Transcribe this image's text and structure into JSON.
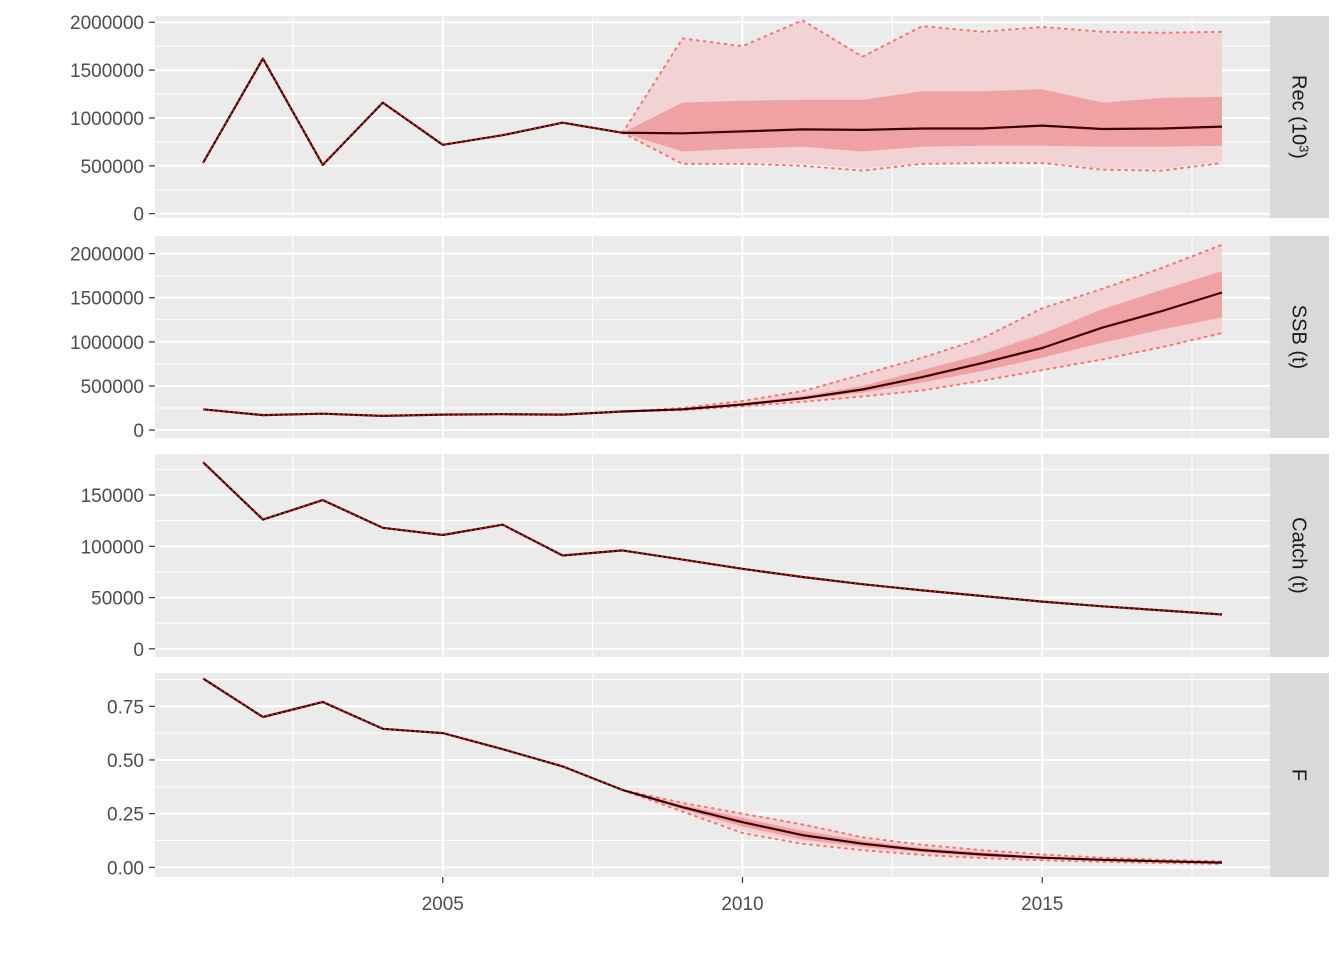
{
  "chart_data": {
    "type": "line",
    "layout": "faceted-vertical",
    "x_axis": {
      "ticks": [
        2005,
        2010,
        2015
      ],
      "tick_labels": [
        "2005",
        "2010",
        "2015"
      ],
      "range": [
        2000.2,
        2018.8
      ]
    },
    "colors": {
      "panel_bg": "#ebebeb",
      "grid": "#ffffff",
      "strip_bg": "#d9d9d9",
      "median": "#3d0000",
      "band_outer": "#f2d3d5",
      "band_inner": "#f0a1a4",
      "dotted": "#f8766d",
      "tick_text": "#4d4d4d",
      "strip_text": "#1a1a1a"
    },
    "facets": [
      {
        "id": "rec",
        "strip_label": "Rec (10",
        "strip_label_sup": "3",
        "strip_label_end": ")",
        "ylim": [
          -45000,
          2065000
        ],
        "y_ticks": [
          0,
          500000,
          1000000,
          1500000,
          2000000
        ],
        "y_tick_labels": [
          "0",
          "500000",
          "1000000",
          "1500000",
          "2000000"
        ],
        "years": [
          2001,
          2002,
          2003,
          2004,
          2005,
          2006,
          2007,
          2008,
          2009,
          2010,
          2011,
          2012,
          2013,
          2014,
          2015,
          2016,
          2017,
          2018
        ],
        "median": [
          530000,
          1620000,
          510000,
          1160000,
          720000,
          820000,
          950000,
          845000,
          840000,
          860000,
          880000,
          875000,
          890000,
          890000,
          920000,
          885000,
          890000,
          910000
        ],
        "band_years": [
          2008,
          2009,
          2010,
          2011,
          2012,
          2013,
          2014,
          2015,
          2016,
          2017,
          2018
        ],
        "outer_lower": [
          845000,
          530000,
          530000,
          520000,
          470000,
          530000,
          540000,
          540000,
          470000,
          470000,
          540000
        ],
        "outer_upper": [
          845000,
          1820000,
          1740000,
          2010000,
          1650000,
          1950000,
          1890000,
          1940000,
          1890000,
          1890000,
          1890000
        ],
        "inner_lower": [
          845000,
          650000,
          680000,
          700000,
          650000,
          700000,
          710000,
          710000,
          700000,
          700000,
          710000
        ],
        "inner_upper": [
          845000,
          1160000,
          1180000,
          1190000,
          1190000,
          1280000,
          1280000,
          1300000,
          1160000,
          1210000,
          1220000
        ],
        "dotted_lower": [
          845000,
          520000,
          520000,
          500000,
          450000,
          520000,
          530000,
          530000,
          460000,
          450000,
          530000
        ],
        "dotted_upper": [
          845000,
          1830000,
          1750000,
          2020000,
          1640000,
          1960000,
          1900000,
          1950000,
          1900000,
          1890000,
          1900000
        ]
      },
      {
        "id": "ssb",
        "strip_label": "SSB (t)",
        "ylim": [
          -90000,
          2200000
        ],
        "y_ticks": [
          0,
          500000,
          1000000,
          1500000,
          2000000
        ],
        "y_tick_labels": [
          "0",
          "500000",
          "1000000",
          "1500000",
          "2000000"
        ],
        "years": [
          2001,
          2002,
          2003,
          2004,
          2005,
          2006,
          2007,
          2008,
          2009,
          2010,
          2011,
          2012,
          2013,
          2014,
          2015,
          2016,
          2017,
          2018
        ],
        "median": [
          235000,
          170000,
          185000,
          160000,
          175000,
          180000,
          175000,
          210000,
          235000,
          290000,
          360000,
          460000,
          600000,
          760000,
          930000,
          1160000,
          1350000,
          1560000
        ],
        "band_years": [
          2008,
          2009,
          2010,
          2011,
          2012,
          2013,
          2014,
          2015,
          2016,
          2017,
          2018
        ],
        "outer_lower": [
          210000,
          225000,
          270000,
          320000,
          380000,
          450000,
          560000,
          680000,
          800000,
          940000,
          1090000
        ],
        "outer_upper": [
          210000,
          250000,
          330000,
          440000,
          630000,
          820000,
          1040000,
          1370000,
          1600000,
          1840000,
          2090000
        ],
        "inner_lower": [
          210000,
          230000,
          285000,
          345000,
          425000,
          540000,
          670000,
          820000,
          990000,
          1140000,
          1280000
        ],
        "inner_upper": [
          210000,
          240000,
          305000,
          385000,
          500000,
          680000,
          860000,
          1090000,
          1370000,
          1590000,
          1800000
        ],
        "dotted_lower": [
          210000,
          225000,
          270000,
          320000,
          380000,
          450000,
          560000,
          680000,
          800000,
          940000,
          1100000
        ],
        "dotted_upper": [
          210000,
          250000,
          330000,
          440000,
          630000,
          820000,
          1040000,
          1380000,
          1600000,
          1840000,
          2100000
        ]
      },
      {
        "id": "catch",
        "strip_label": "Catch (t)",
        "ylim": [
          -8000,
          190000
        ],
        "y_ticks": [
          0,
          50000,
          100000,
          150000
        ],
        "y_tick_labels": [
          "0",
          "50000",
          "100000",
          "150000"
        ],
        "years": [
          2001,
          2002,
          2003,
          2004,
          2005,
          2006,
          2007,
          2008,
          2009,
          2010,
          2011,
          2012,
          2013,
          2014,
          2015,
          2016,
          2017,
          2018
        ],
        "median": [
          182000,
          126000,
          145000,
          118000,
          111000,
          121000,
          91000,
          96000,
          87000,
          78000,
          70000,
          63000,
          57000,
          51500,
          46000,
          41500,
          37500,
          33500
        ],
        "band_years": [],
        "outer_lower": [],
        "outer_upper": [],
        "inner_lower": [],
        "inner_upper": [],
        "dotted_lower": [],
        "dotted_upper": []
      },
      {
        "id": "f",
        "strip_label": "F",
        "ylim": [
          -0.045,
          0.905
        ],
        "y_ticks": [
          0,
          0.25,
          0.5,
          0.75
        ],
        "y_tick_labels": [
          "0.00",
          "0.25",
          "0.50",
          "0.75"
        ],
        "years": [
          2001,
          2002,
          2003,
          2004,
          2005,
          2006,
          2007,
          2008,
          2009,
          2010,
          2011,
          2012,
          2013,
          2014,
          2015,
          2016,
          2017,
          2018
        ],
        "median": [
          0.88,
          0.7,
          0.77,
          0.645,
          0.625,
          0.55,
          0.47,
          0.36,
          0.28,
          0.21,
          0.15,
          0.11,
          0.08,
          0.06,
          0.045,
          0.035,
          0.028,
          0.022
        ],
        "band_years": [
          2008,
          2009,
          2010,
          2011,
          2012,
          2013,
          2014,
          2015,
          2016,
          2017,
          2018
        ],
        "outer_lower": [
          0.36,
          0.26,
          0.17,
          0.12,
          0.085,
          0.06,
          0.045,
          0.035,
          0.027,
          0.02,
          0.016
        ],
        "outer_upper": [
          0.36,
          0.3,
          0.25,
          0.2,
          0.14,
          0.1,
          0.08,
          0.06,
          0.045,
          0.035,
          0.028
        ],
        "inner_lower": [
          0.36,
          0.27,
          0.19,
          0.13,
          0.095,
          0.07,
          0.05,
          0.04,
          0.03,
          0.024,
          0.019
        ],
        "inner_upper": [
          0.36,
          0.29,
          0.23,
          0.17,
          0.125,
          0.09,
          0.07,
          0.05,
          0.04,
          0.032,
          0.025
        ],
        "dotted_lower": [
          0.36,
          0.26,
          0.16,
          0.11,
          0.08,
          0.058,
          0.043,
          0.033,
          0.026,
          0.02,
          0.016
        ],
        "dotted_upper": [
          0.36,
          0.3,
          0.25,
          0.2,
          0.14,
          0.105,
          0.08,
          0.06,
          0.045,
          0.035,
          0.028
        ]
      }
    ]
  }
}
